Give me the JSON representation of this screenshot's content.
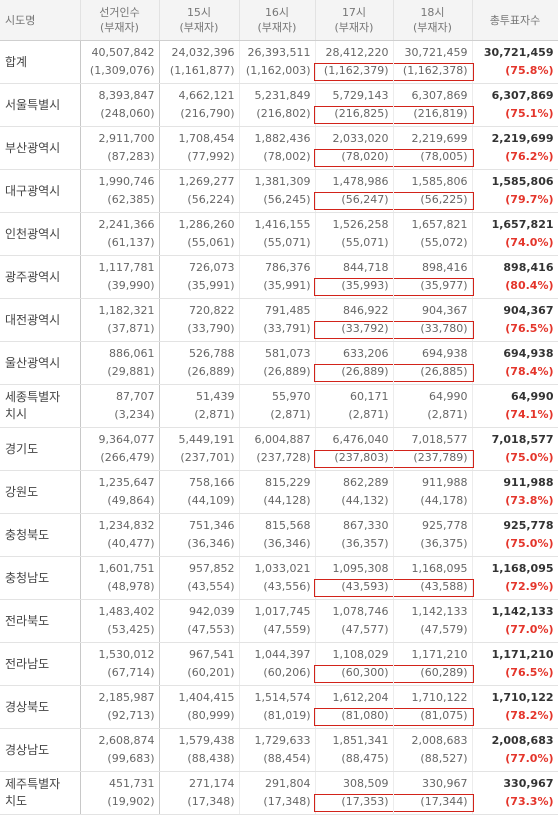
{
  "headers": [
    "시도명",
    "선거인수",
    "(부재자)",
    "15시",
    "(부재자)",
    "16시",
    "(부재자)",
    "17시",
    "(부재자)",
    "18시",
    "(부재자)",
    "총투표자수"
  ],
  "rows": [
    {
      "region": "합계",
      "electors": "40,507,842",
      "electors_absentee": "(1,309,076)",
      "h15": "24,032,396",
      "h15_abs": "(1,161,877)",
      "h16": "26,393,511",
      "h16_abs": "(1,162,003)",
      "h17": "28,412,220",
      "h17_abs": "(1,162,379)",
      "h18": "30,721,459",
      "h18_abs": "(1,162,378)",
      "total": "30,721,459",
      "rate": "(75.8%)",
      "boxed": true
    },
    {
      "region": "서울특별시",
      "electors": "8,393,847",
      "electors_absentee": "(248,060)",
      "h15": "4,662,121",
      "h15_abs": "(216,790)",
      "h16": "5,231,849",
      "h16_abs": "(216,802)",
      "h17": "5,729,143",
      "h17_abs": "(216,825)",
      "h18": "6,307,869",
      "h18_abs": "(216,819)",
      "total": "6,307,869",
      "rate": "(75.1%)",
      "boxed": true
    },
    {
      "region": "부산광역시",
      "electors": "2,911,700",
      "electors_absentee": "(87,283)",
      "h15": "1,708,454",
      "h15_abs": "(77,992)",
      "h16": "1,882,436",
      "h16_abs": "(78,002)",
      "h17": "2,033,020",
      "h17_abs": "(78,020)",
      "h18": "2,219,699",
      "h18_abs": "(78,005)",
      "total": "2,219,699",
      "rate": "(76.2%)",
      "boxed": true
    },
    {
      "region": "대구광역시",
      "electors": "1,990,746",
      "electors_absentee": "(62,385)",
      "h15": "1,269,277",
      "h15_abs": "(56,224)",
      "h16": "1,381,309",
      "h16_abs": "(56,245)",
      "h17": "1,478,986",
      "h17_abs": "(56,247)",
      "h18": "1,585,806",
      "h18_abs": "(56,225)",
      "total": "1,585,806",
      "rate": "(79.7%)",
      "boxed": true
    },
    {
      "region": "인천광역시",
      "electors": "2,241,366",
      "electors_absentee": "(61,137)",
      "h15": "1,286,260",
      "h15_abs": "(55,061)",
      "h16": "1,416,155",
      "h16_abs": "(55,071)",
      "h17": "1,526,258",
      "h17_abs": "(55,071)",
      "h18": "1,657,821",
      "h18_abs": "(55,072)",
      "total": "1,657,821",
      "rate": "(74.0%)",
      "boxed": false
    },
    {
      "region": "광주광역시",
      "electors": "1,117,781",
      "electors_absentee": "(39,990)",
      "h15": "726,073",
      "h15_abs": "(35,991)",
      "h16": "786,376",
      "h16_abs": "(35,991)",
      "h17": "844,718",
      "h17_abs": "(35,993)",
      "h18": "898,416",
      "h18_abs": "(35,977)",
      "total": "898,416",
      "rate": "(80.4%)",
      "boxed": true
    },
    {
      "region": "대전광역시",
      "electors": "1,182,321",
      "electors_absentee": "(37,871)",
      "h15": "720,822",
      "h15_abs": "(33,790)",
      "h16": "791,485",
      "h16_abs": "(33,791)",
      "h17": "846,922",
      "h17_abs": "(33,792)",
      "h18": "904,367",
      "h18_abs": "(33,780)",
      "total": "904,367",
      "rate": "(76.5%)",
      "boxed": true
    },
    {
      "region": "울산광역시",
      "electors": "886,061",
      "electors_absentee": "(29,881)",
      "h15": "526,788",
      "h15_abs": "(26,889)",
      "h16": "581,073",
      "h16_abs": "(26,889)",
      "h17": "633,206",
      "h17_abs": "(26,889)",
      "h18": "694,938",
      "h18_abs": "(26,885)",
      "total": "694,938",
      "rate": "(78.4%)",
      "boxed": true
    },
    {
      "region": "세종특별자|치시",
      "electors": "87,707",
      "electors_absentee": "(3,234)",
      "h15": "51,439",
      "h15_abs": "(2,871)",
      "h16": "55,970",
      "h16_abs": "(2,871)",
      "h17": "60,171",
      "h17_abs": "(2,871)",
      "h18": "64,990",
      "h18_abs": "(2,871)",
      "total": "64,990",
      "rate": "(74.1%)",
      "boxed": false
    },
    {
      "region": "경기도",
      "electors": "9,364,077",
      "electors_absentee": "(266,479)",
      "h15": "5,449,191",
      "h15_abs": "(237,701)",
      "h16": "6,004,887",
      "h16_abs": "(237,728)",
      "h17": "6,476,040",
      "h17_abs": "(237,803)",
      "h18": "7,018,577",
      "h18_abs": "(237,789)",
      "total": "7,018,577",
      "rate": "(75.0%)",
      "boxed": true
    },
    {
      "region": "강원도",
      "electors": "1,235,647",
      "electors_absentee": "(49,864)",
      "h15": "758,166",
      "h15_abs": "(44,109)",
      "h16": "815,229",
      "h16_abs": "(44,128)",
      "h17": "862,289",
      "h17_abs": "(44,132)",
      "h18": "911,988",
      "h18_abs": "(44,178)",
      "total": "911,988",
      "rate": "(73.8%)",
      "boxed": false
    },
    {
      "region": "충청북도",
      "electors": "1,234,832",
      "electors_absentee": "(40,477)",
      "h15": "751,346",
      "h15_abs": "(36,346)",
      "h16": "815,568",
      "h16_abs": "(36,346)",
      "h17": "867,330",
      "h17_abs": "(36,357)",
      "h18": "925,778",
      "h18_abs": "(36,375)",
      "total": "925,778",
      "rate": "(75.0%)",
      "boxed": false
    },
    {
      "region": "충청남도",
      "electors": "1,601,751",
      "electors_absentee": "(48,978)",
      "h15": "957,852",
      "h15_abs": "(43,554)",
      "h16": "1,033,021",
      "h16_abs": "(43,556)",
      "h17": "1,095,308",
      "h17_abs": "(43,593)",
      "h18": "1,168,095",
      "h18_abs": "(43,588)",
      "total": "1,168,095",
      "rate": "(72.9%)",
      "boxed": true
    },
    {
      "region": "전라북도",
      "electors": "1,483,402",
      "electors_absentee": "(53,425)",
      "h15": "942,039",
      "h15_abs": "(47,553)",
      "h16": "1,017,745",
      "h16_abs": "(47,559)",
      "h17": "1,078,746",
      "h17_abs": "(47,577)",
      "h18": "1,142,133",
      "h18_abs": "(47,579)",
      "total": "1,142,133",
      "rate": "(77.0%)",
      "boxed": false
    },
    {
      "region": "전라남도",
      "electors": "1,530,012",
      "electors_absentee": "(67,714)",
      "h15": "967,541",
      "h15_abs": "(60,201)",
      "h16": "1,044,397",
      "h16_abs": "(60,206)",
      "h17": "1,108,029",
      "h17_abs": "(60,300)",
      "h18": "1,171,210",
      "h18_abs": "(60,289)",
      "total": "1,171,210",
      "rate": "(76.5%)",
      "boxed": true
    },
    {
      "region": "경상북도",
      "electors": "2,185,987",
      "electors_absentee": "(92,713)",
      "h15": "1,404,415",
      "h15_abs": "(80,999)",
      "h16": "1,514,574",
      "h16_abs": "(81,019)",
      "h17": "1,612,204",
      "h17_abs": "(81,080)",
      "h18": "1,710,122",
      "h18_abs": "(81,075)",
      "total": "1,710,122",
      "rate": "(78.2%)",
      "boxed": true
    },
    {
      "region": "경상남도",
      "electors": "2,608,874",
      "electors_absentee": "(99,683)",
      "h15": "1,579,438",
      "h15_abs": "(88,438)",
      "h16": "1,729,633",
      "h16_abs": "(88,454)",
      "h17": "1,851,341",
      "h17_abs": "(88,475)",
      "h18": "2,008,683",
      "h18_abs": "(88,527)",
      "total": "2,008,683",
      "rate": "(77.0%)",
      "boxed": false
    },
    {
      "region": "제주특별자|치도",
      "electors": "451,731",
      "electors_absentee": "(19,902)",
      "h15": "271,174",
      "h15_abs": "(17,348)",
      "h16": "291,804",
      "h16_abs": "(17,348)",
      "h17": "308,509",
      "h17_abs": "(17,353)",
      "h18": "330,967",
      "h18_abs": "(17,344)",
      "total": "330,967",
      "rate": "(73.3%)",
      "boxed": true
    }
  ],
  "colors": {
    "highlight_box": "#d2231a",
    "rate_text": "#e4352b",
    "header_bg": "#f4f4f4"
  }
}
